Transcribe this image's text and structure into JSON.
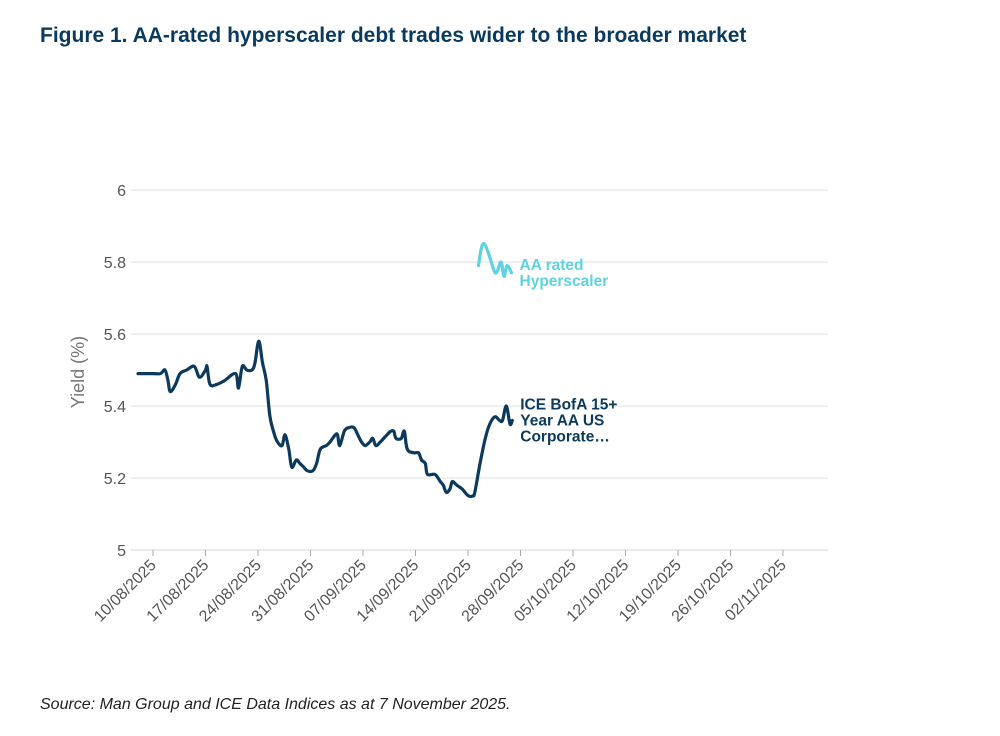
{
  "title": "Figure 1. AA-rated hyperscaler debt trades wider to the broader market",
  "source": "Source: Man Group and ICE Data Indices as at 7 November 2025.",
  "colors": {
    "title": "#0b3a5e",
    "primary": "#0d3a5c",
    "secondary": "#5ed3df",
    "grid": "#e6e6e6"
  },
  "chart_data": {
    "type": "line",
    "title": "Figure 1. AA-rated hyperscaler debt trades wider to the broader market",
    "xlabel": "",
    "ylabel": "Yield (%)",
    "ylim": [
      5,
      6
    ],
    "yticks": [
      "5",
      "5.2",
      "5.4",
      "5.6",
      "5.8",
      "6"
    ],
    "xticks": [
      "10/08/2025",
      "17/08/2025",
      "24/08/2025",
      "31/08/2025",
      "07/09/2025",
      "14/09/2025",
      "21/09/2025",
      "28/09/2025",
      "05/10/2025",
      "12/10/2025",
      "19/10/2025",
      "26/10/2025",
      "02/11/2025"
    ],
    "x_start": "10/08/2025",
    "x_units": "days since 10/08/2025",
    "grid": true,
    "series": [
      {
        "name": "ICE BofA 15+ Year AA US Corporate…",
        "label_lines": [
          "ICE BofA 15+",
          "Year AA US",
          "Corporate…"
        ],
        "color": "#0d3a5c",
        "points": [
          [
            -2,
            5.49
          ],
          [
            0,
            5.49
          ],
          [
            1,
            5.49
          ],
          [
            1.6,
            5.5
          ],
          [
            2,
            5.47
          ],
          [
            2.3,
            5.44
          ],
          [
            3,
            5.46
          ],
          [
            3.6,
            5.49
          ],
          [
            4.5,
            5.5
          ],
          [
            5.5,
            5.51
          ],
          [
            6.2,
            5.48
          ],
          [
            7,
            5.5
          ],
          [
            7.2,
            5.51
          ],
          [
            7.6,
            5.46
          ],
          [
            8.5,
            5.46
          ],
          [
            9.5,
            5.47
          ],
          [
            11,
            5.49
          ],
          [
            11.4,
            5.45
          ],
          [
            11.9,
            5.51
          ],
          [
            12.5,
            5.5
          ],
          [
            13.2,
            5.5
          ],
          [
            13.6,
            5.52
          ],
          [
            14.1,
            5.58
          ],
          [
            14.6,
            5.52
          ],
          [
            15.1,
            5.47
          ],
          [
            15.6,
            5.37
          ],
          [
            16.2,
            5.32
          ],
          [
            16.6,
            5.3
          ],
          [
            17.2,
            5.29
          ],
          [
            17.6,
            5.32
          ],
          [
            18.1,
            5.28
          ],
          [
            18.5,
            5.23
          ],
          [
            19.1,
            5.25
          ],
          [
            19.6,
            5.24
          ],
          [
            20.1,
            5.23
          ],
          [
            20.6,
            5.22
          ],
          [
            21.3,
            5.22
          ],
          [
            21.8,
            5.24
          ],
          [
            22.3,
            5.28
          ],
          [
            23.1,
            5.29
          ],
          [
            23.6,
            5.3
          ],
          [
            24.3,
            5.32
          ],
          [
            24.6,
            5.32
          ],
          [
            24.9,
            5.29
          ],
          [
            25.5,
            5.33
          ],
          [
            26.1,
            5.34
          ],
          [
            26.8,
            5.34
          ],
          [
            27.3,
            5.32
          ],
          [
            27.8,
            5.3
          ],
          [
            28.3,
            5.29
          ],
          [
            28.9,
            5.3
          ],
          [
            29.3,
            5.31
          ],
          [
            29.7,
            5.29
          ],
          [
            30.3,
            5.3
          ],
          [
            31.2,
            5.32
          ],
          [
            31.7,
            5.33
          ],
          [
            32.1,
            5.33
          ],
          [
            32.4,
            5.31
          ],
          [
            33.1,
            5.31
          ],
          [
            33.5,
            5.33
          ],
          [
            33.9,
            5.28
          ],
          [
            34.8,
            5.27
          ],
          [
            35.4,
            5.27
          ],
          [
            35.8,
            5.25
          ],
          [
            36.3,
            5.24
          ],
          [
            36.6,
            5.21
          ],
          [
            37.6,
            5.21
          ],
          [
            38.3,
            5.19
          ],
          [
            38.7,
            5.18
          ],
          [
            39.1,
            5.16
          ],
          [
            39.6,
            5.17
          ],
          [
            39.9,
            5.19
          ],
          [
            40.5,
            5.18
          ],
          [
            41.2,
            5.17
          ],
          [
            41.6,
            5.16
          ],
          [
            42.1,
            5.15
          ],
          [
            42.6,
            5.15
          ],
          [
            42.9,
            5.16
          ],
          [
            43.6,
            5.24
          ],
          [
            44.3,
            5.31
          ],
          [
            44.9,
            5.35
          ],
          [
            45.6,
            5.37
          ],
          [
            46.2,
            5.36
          ],
          [
            46.6,
            5.36
          ],
          [
            47.1,
            5.4
          ],
          [
            47.6,
            5.35
          ],
          [
            47.9,
            5.36
          ]
        ]
      },
      {
        "name": "AA rated Hyperscaler",
        "label_lines": [
          "AA rated",
          "Hyperscaler"
        ],
        "color": "#5ed3df",
        "points": [
          [
            43.4,
            5.79
          ],
          [
            43.8,
            5.84
          ],
          [
            44.2,
            5.85
          ],
          [
            44.8,
            5.82
          ],
          [
            45.4,
            5.78
          ],
          [
            45.8,
            5.77
          ],
          [
            46.4,
            5.8
          ],
          [
            46.8,
            5.76
          ],
          [
            47.2,
            5.79
          ],
          [
            47.8,
            5.77
          ]
        ]
      }
    ]
  }
}
